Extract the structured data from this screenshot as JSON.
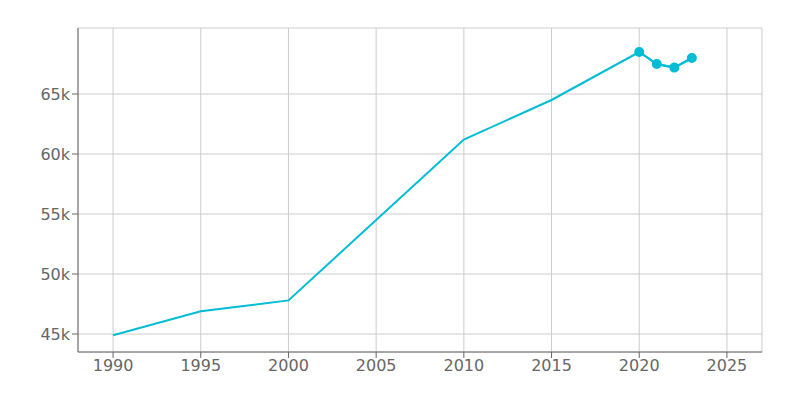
{
  "chart_data": {
    "type": "line",
    "x": [
      1990,
      1995,
      2000,
      2010,
      2015,
      2020,
      2021,
      2022,
      2023
    ],
    "series": [
      {
        "color": "#00BCD4",
        "values": [
          44900,
          46900,
          47800,
          61200,
          64500,
          68500,
          67500,
          67200,
          68000
        ]
      },
      {
        "color": "#00BCD4",
        "marker": "o",
        "values": [
          null,
          null,
          null,
          null,
          null,
          68500,
          67500,
          67200,
          68000
        ]
      }
    ],
    "xlim": [
      1988,
      2027
    ],
    "ylim": [
      43500,
      70500
    ],
    "xticks": [
      1990,
      1995,
      2000,
      2005,
      2010,
      2015,
      2020,
      2025
    ],
    "yticks": [
      {
        "value": 45000,
        "label": "45k"
      },
      {
        "value": 50000,
        "label": "50k"
      },
      {
        "value": 55000,
        "label": "55k"
      },
      {
        "value": 60000,
        "label": "60k"
      },
      {
        "value": 65000,
        "label": "65k"
      }
    ],
    "grid": true
  }
}
